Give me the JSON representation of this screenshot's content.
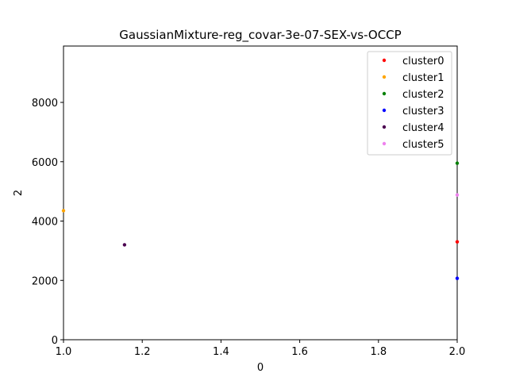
{
  "chart_data": {
    "type": "scatter",
    "title": "GaussianMixture-reg_covar-3e-07-SEX-vs-OCCP",
    "xlabel": "0",
    "ylabel": "2",
    "xlim": [
      1.0,
      2.0
    ],
    "ylim": [
      0,
      9900
    ],
    "xticks": [
      1.0,
      1.2,
      1.4,
      1.6,
      1.8,
      2.0
    ],
    "xtick_labels": [
      "1.0",
      "1.2",
      "1.4",
      "1.6",
      "1.8",
      "2.0"
    ],
    "yticks": [
      0,
      2000,
      4000,
      6000,
      8000
    ],
    "ytick_labels": [
      "0",
      "2000",
      "4000",
      "6000",
      "8000"
    ],
    "grid": false,
    "legend_position": "top-right",
    "series": [
      {
        "name": "cluster0",
        "color": "#ff0000",
        "points": [
          {
            "x": 2.0,
            "y": 3300
          }
        ]
      },
      {
        "name": "cluster1",
        "color": "#ffa500",
        "points": [
          {
            "x": 1.0,
            "y": 4350
          }
        ]
      },
      {
        "name": "cluster2",
        "color": "#008000",
        "points": [
          {
            "x": 2.0,
            "y": 5950
          }
        ]
      },
      {
        "name": "cluster3",
        "color": "#0000ff",
        "points": [
          {
            "x": 2.0,
            "y": 2070
          }
        ]
      },
      {
        "name": "cluster4",
        "color": "#4b0050",
        "points": [
          {
            "x": 1.155,
            "y": 3200
          }
        ]
      },
      {
        "name": "cluster5",
        "color": "#ee82ee",
        "points": [
          {
            "x": 2.0,
            "y": 4880
          }
        ]
      }
    ]
  }
}
